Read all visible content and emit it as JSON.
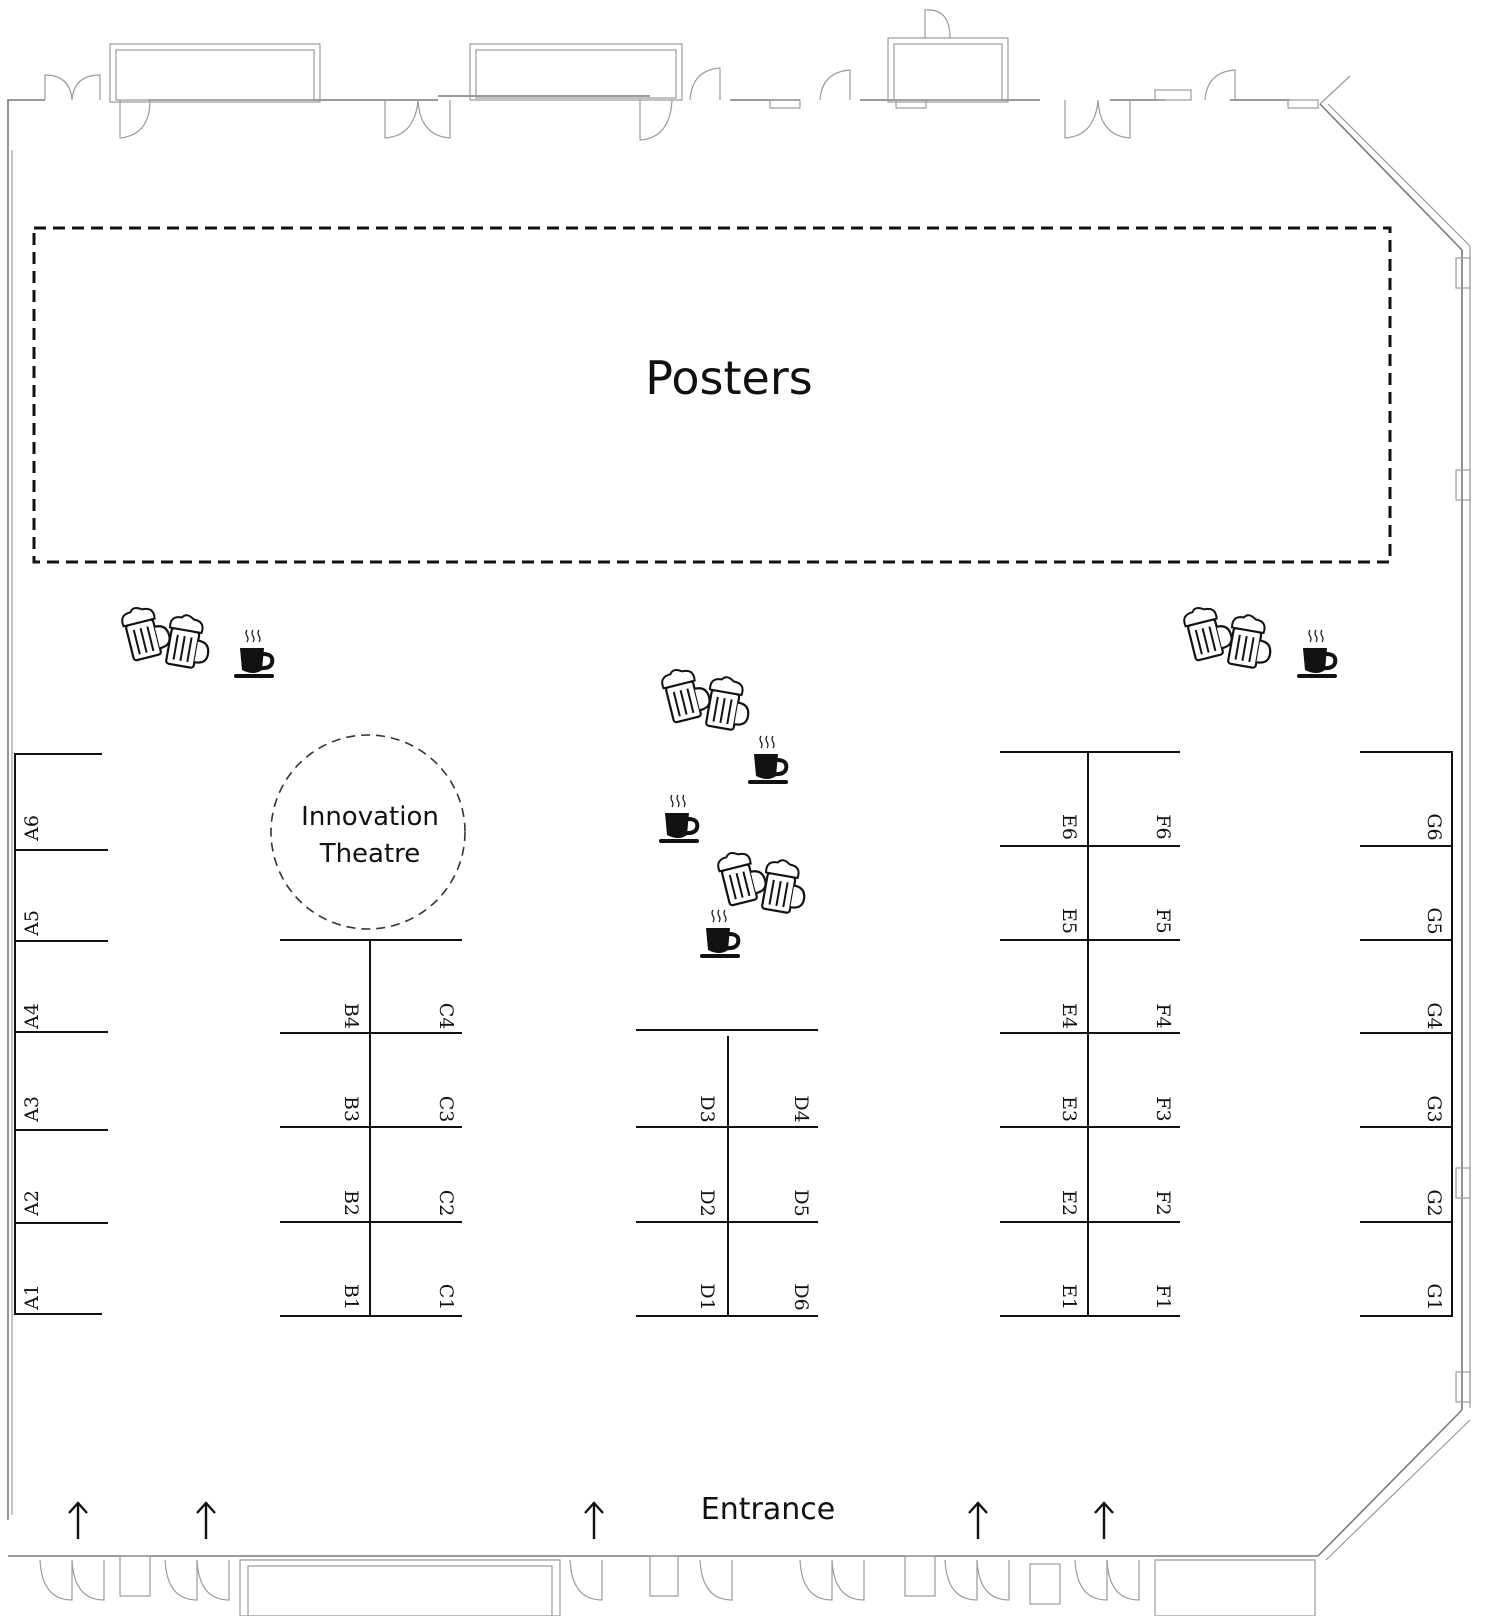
{
  "map": {
    "posters_label": "Posters",
    "theatre_label_line1": "Innovation",
    "theatre_label_line2": "Theatre",
    "entrance_label": "Entrance"
  },
  "booths": {
    "A": [
      "A1",
      "A2",
      "A3",
      "A4",
      "A5",
      "A6"
    ],
    "B": [
      "B1",
      "B2",
      "B3",
      "B4"
    ],
    "C": [
      "C1",
      "C2",
      "C3",
      "C4"
    ],
    "D_left": [
      "D1",
      "D2",
      "D3"
    ],
    "D_right": [
      "D6",
      "D5",
      "D4"
    ],
    "E": [
      "E1",
      "E2",
      "E3",
      "E4",
      "E5",
      "E6"
    ],
    "F": [
      "F1",
      "F2",
      "F3",
      "F4",
      "F5",
      "F6"
    ],
    "G": [
      "G1",
      "G2",
      "G3",
      "G4",
      "G5",
      "G6"
    ]
  },
  "icons": {
    "beer": "beer-mugs-icon",
    "coffee": "coffee-cup-icon",
    "entrance_arrow": "up-arrow-icon"
  }
}
